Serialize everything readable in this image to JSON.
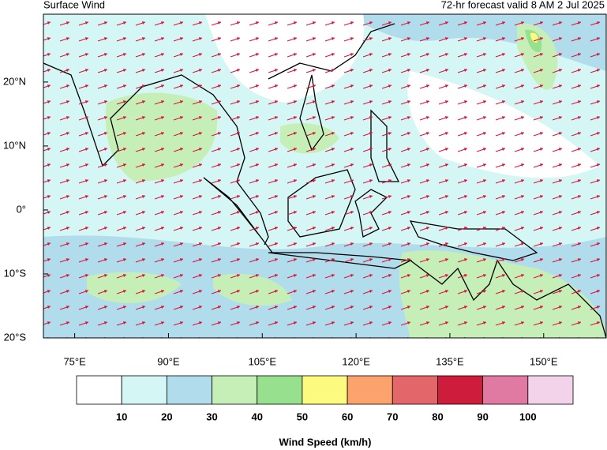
{
  "header": {
    "title": "Surface Wind",
    "subtitle": "72-hr forecast valid 8 AM 2 Jul 2025"
  },
  "map": {
    "xlim": [
      70,
      160
    ],
    "ylim": [
      -20,
      30.6
    ],
    "xticks": [
      {
        "value": 75,
        "label": "75°E"
      },
      {
        "value": 90,
        "label": "90°E"
      },
      {
        "value": 105,
        "label": "105°E"
      },
      {
        "value": 120,
        "label": "120°E"
      },
      {
        "value": 135,
        "label": "135°E"
      },
      {
        "value": 150,
        "label": "150°E"
      }
    ],
    "yticks": [
      {
        "value": 20,
        "label": "20°N"
      },
      {
        "value": 10,
        "label": "10°N"
      },
      {
        "value": 0,
        "label": "0°"
      },
      {
        "value": -10,
        "label": "10°S"
      },
      {
        "value": -20,
        "label": "20°S"
      }
    ]
  },
  "colorbar": {
    "title": "Wind Speed (km/h)",
    "colors": [
      "#ffffff",
      "#d4f6f4",
      "#b1dcec",
      "#c6efb8",
      "#96e08e",
      "#fdfb7f",
      "#fca26c",
      "#e3676a",
      "#cd1c3c",
      "#e07aa3",
      "#f3d3ea"
    ],
    "ticks": [
      10,
      20,
      30,
      40,
      50,
      60,
      70,
      80,
      90,
      100
    ]
  }
}
